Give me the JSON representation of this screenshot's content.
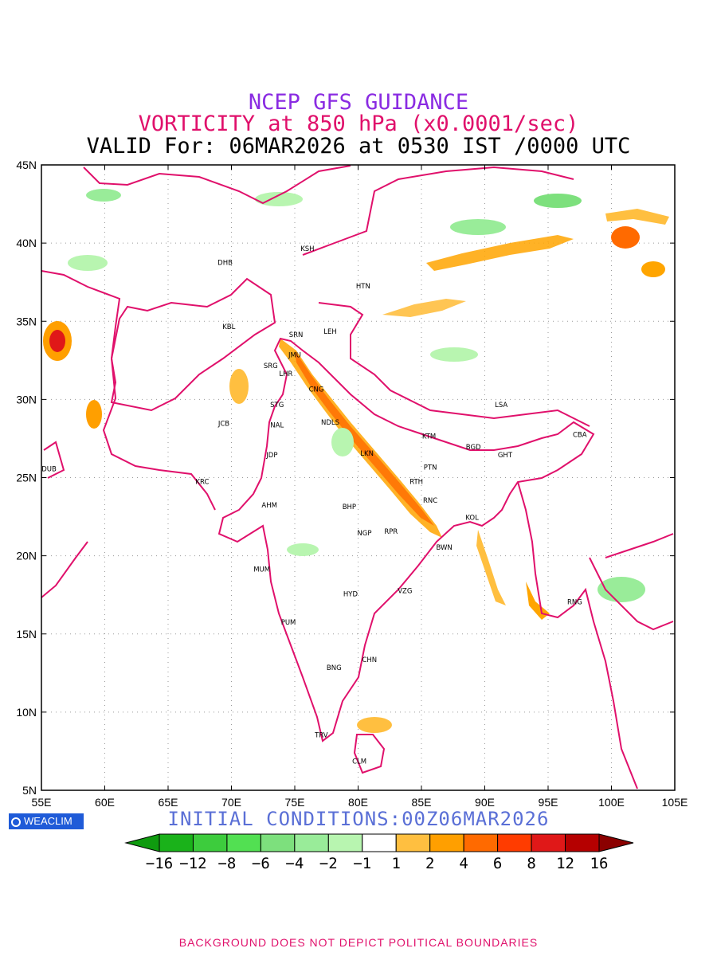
{
  "titles": {
    "line1": "NCEP GFS GUIDANCE",
    "line2": "VORTICITY at 850 hPa (x0.0001/sec)",
    "line3": "VALID For: 06MAR2026 at 0530 IST /0000 UTC"
  },
  "initial_conditions": "INITIAL CONDITIONS:00Z06MAR2026",
  "logo_text": "WEACLIM",
  "footer": "BACKGROUND DOES NOT DEPICT POLITICAL BOUNDARIES",
  "map": {
    "lon_range": [
      55,
      105
    ],
    "lat_range": [
      5,
      45
    ],
    "lon_ticks": [
      "55E",
      "60E",
      "65E",
      "70E",
      "75E",
      "80E",
      "85E",
      "90E",
      "95E",
      "100E",
      "105E"
    ],
    "lat_ticks": [
      "5N",
      "10N",
      "15N",
      "20N",
      "25N",
      "30N",
      "35N",
      "40N",
      "45N"
    ],
    "grid": true,
    "boundary_color": "#e0106b",
    "cities": [
      {
        "code": "KSH",
        "lon": 76.0,
        "lat": 39.5
      },
      {
        "code": "DHB",
        "lon": 69.5,
        "lat": 38.6
      },
      {
        "code": "HTN",
        "lon": 80.4,
        "lat": 37.1
      },
      {
        "code": "KBL",
        "lon": 69.8,
        "lat": 34.5
      },
      {
        "code": "SRN",
        "lon": 75.1,
        "lat": 34.0
      },
      {
        "code": "LEH",
        "lon": 77.8,
        "lat": 34.2
      },
      {
        "code": "JMU",
        "lon": 75.0,
        "lat": 32.7
      },
      {
        "code": "SRG",
        "lon": 73.1,
        "lat": 32.0
      },
      {
        "code": "LHR",
        "lon": 74.3,
        "lat": 31.5
      },
      {
        "code": "CNG",
        "lon": 76.7,
        "lat": 30.5
      },
      {
        "code": "STG",
        "lon": 73.6,
        "lat": 29.5
      },
      {
        "code": "LSA",
        "lon": 91.3,
        "lat": 29.5
      },
      {
        "code": "JCB",
        "lon": 69.4,
        "lat": 28.3
      },
      {
        "code": "NAL",
        "lon": 73.6,
        "lat": 28.2
      },
      {
        "code": "NDLS",
        "lon": 77.8,
        "lat": 28.4
      },
      {
        "code": "CBA",
        "lon": 97.5,
        "lat": 27.6
      },
      {
        "code": "KTM",
        "lon": 85.6,
        "lat": 27.5
      },
      {
        "code": "BGD",
        "lon": 89.1,
        "lat": 26.8
      },
      {
        "code": "GHT",
        "lon": 91.6,
        "lat": 26.3
      },
      {
        "code": "LKN",
        "lon": 80.7,
        "lat": 26.4
      },
      {
        "code": "JDP",
        "lon": 73.2,
        "lat": 26.3
      },
      {
        "code": "DUB",
        "lon": 55.6,
        "lat": 25.4
      },
      {
        "code": "PTN",
        "lon": 85.7,
        "lat": 25.5
      },
      {
        "code": "RTH",
        "lon": 84.6,
        "lat": 24.6
      },
      {
        "code": "KRC",
        "lon": 67.7,
        "lat": 24.6
      },
      {
        "code": "RNC",
        "lon": 85.7,
        "lat": 23.4
      },
      {
        "code": "AHM",
        "lon": 73.0,
        "lat": 23.1
      },
      {
        "code": "BHP",
        "lon": 79.3,
        "lat": 23.0
      },
      {
        "code": "KOL",
        "lon": 89.0,
        "lat": 22.3
      },
      {
        "code": "NGP",
        "lon": 80.5,
        "lat": 21.3
      },
      {
        "code": "RPR",
        "lon": 82.6,
        "lat": 21.4
      },
      {
        "code": "BWN",
        "lon": 86.8,
        "lat": 20.4
      },
      {
        "code": "MUM",
        "lon": 72.4,
        "lat": 19.0
      },
      {
        "code": "HYD",
        "lon": 79.4,
        "lat": 17.4
      },
      {
        "code": "VZG",
        "lon": 83.7,
        "lat": 17.6
      },
      {
        "code": "RNG",
        "lon": 97.1,
        "lat": 16.9
      },
      {
        "code": "PUM",
        "lon": 74.5,
        "lat": 15.6
      },
      {
        "code": "CHN",
        "lon": 80.9,
        "lat": 13.2
      },
      {
        "code": "BNG",
        "lon": 78.1,
        "lat": 12.7
      },
      {
        "code": "TRV",
        "lon": 77.1,
        "lat": 8.4
      },
      {
        "code": "CLM",
        "lon": 80.1,
        "lat": 6.7
      }
    ]
  },
  "colorbar": {
    "labels": [
      "-16",
      "-12",
      "-8",
      "-6",
      "-4",
      "-2",
      "-1",
      "1",
      "2",
      "4",
      "6",
      "8",
      "12",
      "16"
    ],
    "colors": [
      "#0f9b0f",
      "#1ab21a",
      "#3dcc3d",
      "#52e052",
      "#7de07d",
      "#99ec99",
      "#b8f5b0",
      "#ffffff",
      "#ffbf40",
      "#ff9f00",
      "#ff6a00",
      "#ff3c00",
      "#e01818",
      "#b50000",
      "#8b0000"
    ]
  }
}
